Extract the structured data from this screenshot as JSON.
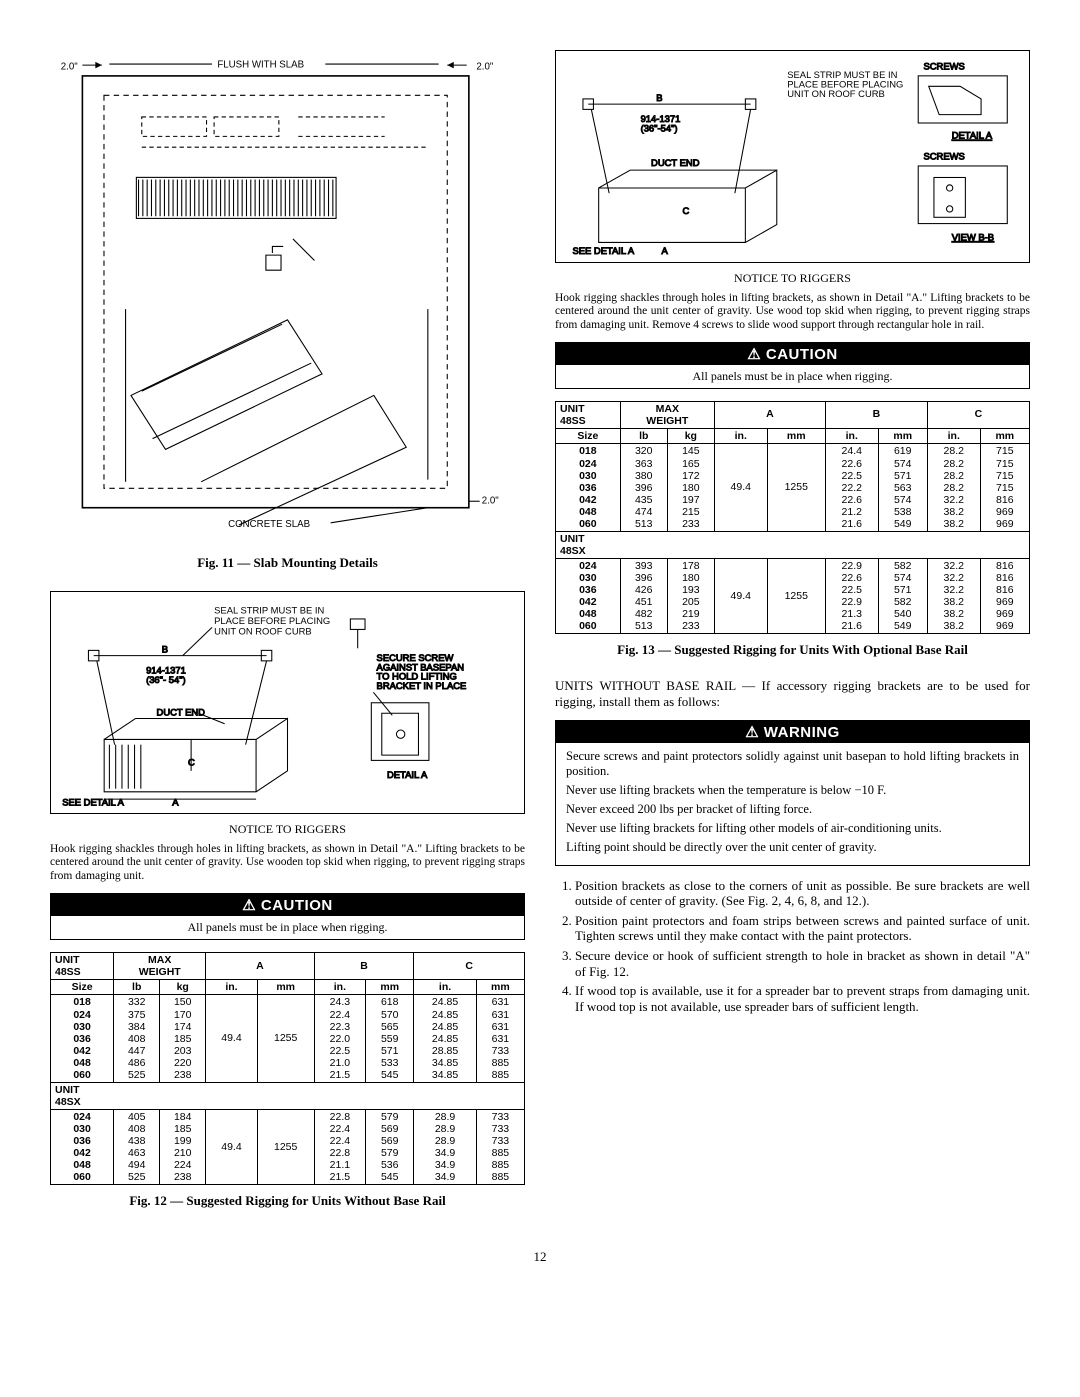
{
  "page_number": "12",
  "fig11": {
    "caption": "Fig. 11 — Slab Mounting Details",
    "labels": {
      "flush": "FLUSH WITH SLAB",
      "concrete": "CONCRETE SLAB",
      "dim_left": "2.0\"",
      "dim_right_top": "2.0\"",
      "dim_right_bot": "2.0\""
    }
  },
  "fig12": {
    "caption": "Fig. 12 — Suggested Rigging for Units Without Base Rail",
    "labels": {
      "seal": "SEAL STRIP MUST BE IN PLACE BEFORE PLACING UNIT ON ROOF CURB",
      "dim": "914-1371 (36\"- 54\")",
      "duct": "DUCT END",
      "secure": "SECURE SCREW AGAINST BASEPAN TO HOLD LIFTING BRACKET IN PLACE",
      "detailA": "DETAIL A",
      "seeDetail": "SEE DETAIL A",
      "A": "A",
      "B": "B",
      "C": "C"
    },
    "notice_title": "NOTICE TO RIGGERS",
    "notice_text": "Hook rigging shackles through holes in lifting brackets, as shown in Detail \"A.\" Lifting brackets to be centered around the unit center of gravity. Use wooden top skid when rigging, to prevent rigging straps from damaging unit."
  },
  "fig13": {
    "caption": "Fig. 13 — Suggested Rigging for Units With Optional Base Rail",
    "labels": {
      "seal": "SEAL STRIP MUST BE IN PLACE BEFORE PLACING UNIT ON ROOF CURB",
      "dim": "914-1371 (36\"-54\")",
      "duct": "DUCT END",
      "screws": "SCREWS",
      "detailA": "DETAIL A",
      "viewBB": "VIEW B-B",
      "seeDetail": "SEE DETAIL A",
      "A": "A",
      "B": "B",
      "C": "C"
    },
    "notice_title": "NOTICE TO RIGGERS",
    "notice_text": "Hook rigging shackles through holes in lifting brackets, as shown in Detail \"A.\" Lifting brackets to be centered around the unit center of gravity. Use wood top skid when rigging, to prevent rigging straps from damaging unit. Remove 4 screws to slide wood support through rectangular hole in rail."
  },
  "caution": {
    "title": "⚠ CAUTION",
    "body": "All panels must be in place when rigging."
  },
  "warning": {
    "title": "⚠ WARNING",
    "lines": [
      "Secure screws and paint protectors solidly against unit basepan to hold lifting brackets in position.",
      "Never use lifting brackets when the temperature is below −10 F.",
      "Never exceed 200 lbs per bracket of lifting force.",
      "Never use lifting brackets for lifting other models of air-conditioning units.",
      "Lifting point should be directly over the unit center of gravity."
    ]
  },
  "intro_text": "UNITS WITHOUT BASE RAIL — If accessory rigging brackets are to be used for rigging, install them as follows:",
  "steps": [
    "Position brackets as close to the corners of unit as possible. Be sure brackets are well outside of center of gravity. (See Fig. 2, 4, 6, 8, and 12.).",
    "Position paint protectors and foam strips between screws and painted surface of unit. Tighten screws until they make contact with the paint protectors.",
    "Secure device or hook of sufficient strength to hole in bracket as shown in detail \"A\" of Fig. 12.",
    "If wood top is available, use it for a spreader bar to prevent straps from damaging unit. If wood top is not available, use spreader bars of sufficient length."
  ],
  "table12": {
    "headers": {
      "unit": "UNIT 48SS",
      "unit2": "UNIT 48SX",
      "max": "MAX WEIGHT",
      "size": "Size",
      "lb": "lb",
      "kg": "kg",
      "in": "in.",
      "mm": "mm",
      "A": "A",
      "B": "B",
      "C": "C"
    },
    "rows48ss": [
      {
        "size": "018",
        "lb": "332",
        "kg": "150",
        "a_in": "49.4",
        "a_mm": "1255",
        "b_in": "24.3",
        "b_mm": "618",
        "c_in": "24.85",
        "c_mm": "631"
      },
      {
        "size": "024",
        "lb": "375",
        "kg": "170",
        "a_in": "",
        "a_mm": "",
        "b_in": "22.4",
        "b_mm": "570",
        "c_in": "24.85",
        "c_mm": "631"
      },
      {
        "size": "030",
        "lb": "384",
        "kg": "174",
        "a_in": "",
        "a_mm": "",
        "b_in": "22.3",
        "b_mm": "565",
        "c_in": "24.85",
        "c_mm": "631"
      },
      {
        "size": "036",
        "lb": "408",
        "kg": "185",
        "a_in": "",
        "a_mm": "",
        "b_in": "22.0",
        "b_mm": "559",
        "c_in": "24.85",
        "c_mm": "631"
      },
      {
        "size": "042",
        "lb": "447",
        "kg": "203",
        "a_in": "",
        "a_mm": "",
        "b_in": "22.5",
        "b_mm": "571",
        "c_in": "28.85",
        "c_mm": "733"
      },
      {
        "size": "048",
        "lb": "486",
        "kg": "220",
        "a_in": "",
        "a_mm": "",
        "b_in": "21.0",
        "b_mm": "533",
        "c_in": "34.85",
        "c_mm": "885"
      },
      {
        "size": "060",
        "lb": "525",
        "kg": "238",
        "a_in": "",
        "a_mm": "",
        "b_in": "21.5",
        "b_mm": "545",
        "c_in": "34.85",
        "c_mm": "885"
      }
    ],
    "rows48sx": [
      {
        "size": "024",
        "lb": "405",
        "kg": "184",
        "a_in": "49.4",
        "a_mm": "1255",
        "b_in": "22.8",
        "b_mm": "579",
        "c_in": "28.9",
        "c_mm": "733"
      },
      {
        "size": "030",
        "lb": "408",
        "kg": "185",
        "a_in": "",
        "a_mm": "",
        "b_in": "22.4",
        "b_mm": "569",
        "c_in": "28.9",
        "c_mm": "733"
      },
      {
        "size": "036",
        "lb": "438",
        "kg": "199",
        "a_in": "",
        "a_mm": "",
        "b_in": "22.4",
        "b_mm": "569",
        "c_in": "28.9",
        "c_mm": "733"
      },
      {
        "size": "042",
        "lb": "463",
        "kg": "210",
        "a_in": "",
        "a_mm": "",
        "b_in": "22.8",
        "b_mm": "579",
        "c_in": "34.9",
        "c_mm": "885"
      },
      {
        "size": "048",
        "lb": "494",
        "kg": "224",
        "a_in": "",
        "a_mm": "",
        "b_in": "21.1",
        "b_mm": "536",
        "c_in": "34.9",
        "c_mm": "885"
      },
      {
        "size": "060",
        "lb": "525",
        "kg": "238",
        "a_in": "",
        "a_mm": "",
        "b_in": "21.5",
        "b_mm": "545",
        "c_in": "34.9",
        "c_mm": "885"
      }
    ]
  },
  "table13": {
    "headers": {
      "unit": "UNIT 48SS",
      "unit2": "UNIT 48SX",
      "max": "MAX WEIGHT",
      "size": "Size",
      "lb": "lb",
      "kg": "kg",
      "in": "in.",
      "mm": "mm",
      "A": "A",
      "B": "B",
      "C": "C"
    },
    "rows48ss": [
      {
        "size": "018",
        "lb": "320",
        "kg": "145",
        "a_in": "49.4",
        "a_mm": "1255",
        "b_in": "24.4",
        "b_mm": "619",
        "c_in": "28.2",
        "c_mm": "715"
      },
      {
        "size": "024",
        "lb": "363",
        "kg": "165",
        "a_in": "",
        "a_mm": "",
        "b_in": "22.6",
        "b_mm": "574",
        "c_in": "28.2",
        "c_mm": "715"
      },
      {
        "size": "030",
        "lb": "380",
        "kg": "172",
        "a_in": "",
        "a_mm": "",
        "b_in": "22.5",
        "b_mm": "571",
        "c_in": "28.2",
        "c_mm": "715"
      },
      {
        "size": "036",
        "lb": "396",
        "kg": "180",
        "a_in": "",
        "a_mm": "",
        "b_in": "22.2",
        "b_mm": "563",
        "c_in": "28.2",
        "c_mm": "715"
      },
      {
        "size": "042",
        "lb": "435",
        "kg": "197",
        "a_in": "",
        "a_mm": "",
        "b_in": "22.6",
        "b_mm": "574",
        "c_in": "32.2",
        "c_mm": "816"
      },
      {
        "size": "048",
        "lb": "474",
        "kg": "215",
        "a_in": "",
        "a_mm": "",
        "b_in": "21.2",
        "b_mm": "538",
        "c_in": "38.2",
        "c_mm": "969"
      },
      {
        "size": "060",
        "lb": "513",
        "kg": "233",
        "a_in": "",
        "a_mm": "",
        "b_in": "21.6",
        "b_mm": "549",
        "c_in": "38.2",
        "c_mm": "969"
      }
    ],
    "rows48sx": [
      {
        "size": "024",
        "lb": "393",
        "kg": "178",
        "a_in": "49.4",
        "a_mm": "1255",
        "b_in": "22.9",
        "b_mm": "582",
        "c_in": "32.2",
        "c_mm": "816"
      },
      {
        "size": "030",
        "lb": "396",
        "kg": "180",
        "a_in": "",
        "a_mm": "",
        "b_in": "22.6",
        "b_mm": "574",
        "c_in": "32.2",
        "c_mm": "816"
      },
      {
        "size": "036",
        "lb": "426",
        "kg": "193",
        "a_in": "",
        "a_mm": "",
        "b_in": "22.5",
        "b_mm": "571",
        "c_in": "32.2",
        "c_mm": "816"
      },
      {
        "size": "042",
        "lb": "451",
        "kg": "205",
        "a_in": "",
        "a_mm": "",
        "b_in": "22.9",
        "b_mm": "582",
        "c_in": "38.2",
        "c_mm": "969"
      },
      {
        "size": "048",
        "lb": "482",
        "kg": "219",
        "a_in": "",
        "a_mm": "",
        "b_in": "21.3",
        "b_mm": "540",
        "c_in": "38.2",
        "c_mm": "969"
      },
      {
        "size": "060",
        "lb": "513",
        "kg": "233",
        "a_in": "",
        "a_mm": "",
        "b_in": "21.6",
        "b_mm": "549",
        "c_in": "38.2",
        "c_mm": "969"
      }
    ]
  }
}
